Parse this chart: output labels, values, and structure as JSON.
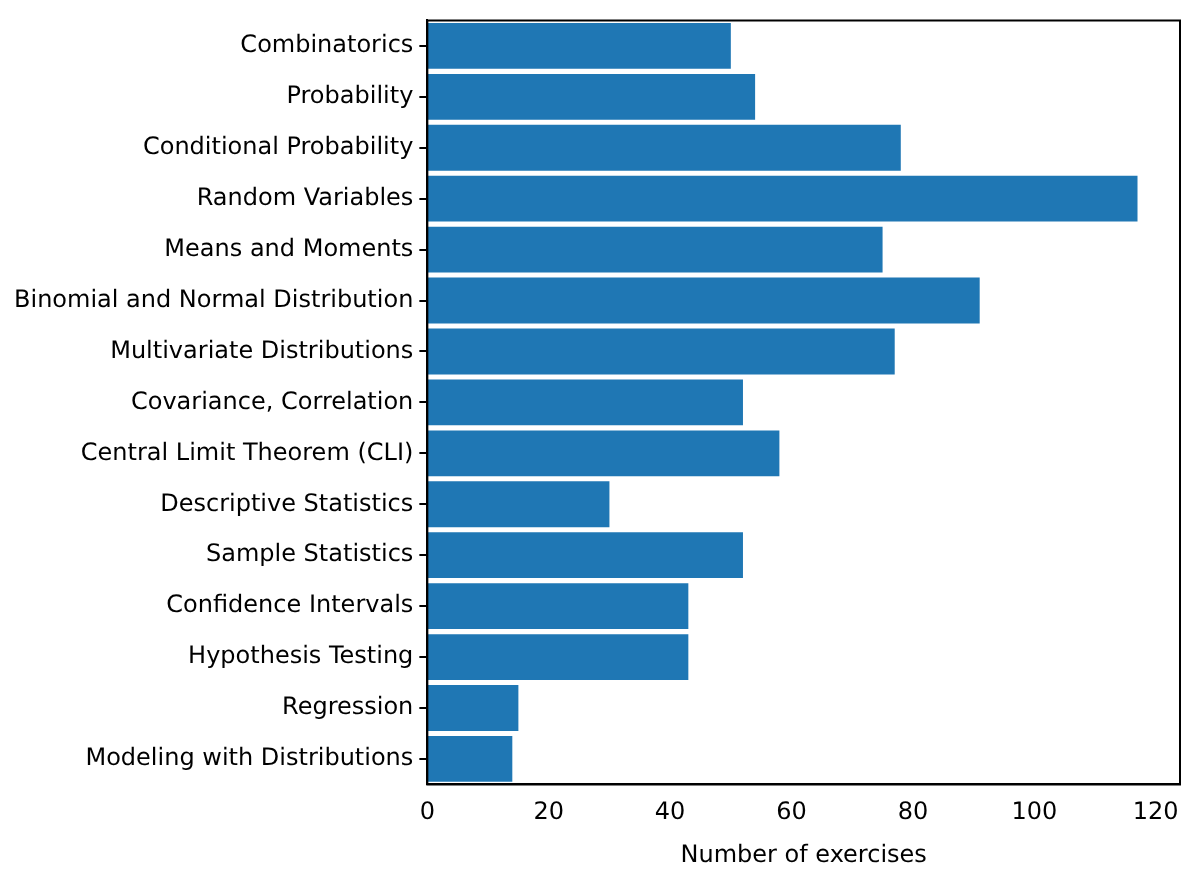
{
  "chart_data": {
    "type": "bar",
    "orientation": "horizontal",
    "xlabel": "Number of exercises",
    "categories": [
      "Combinatorics",
      "Probability",
      "Conditional Probability",
      "Random Variables",
      "Means and Moments",
      "Binomial and Normal Distribution",
      "Multivariate Distributions",
      "Covariance, Correlation",
      "Central Limit Theorem (CLI)",
      "Descriptive Statistics",
      "Sample Statistics",
      "Confidence Intervals",
      "Hypothesis Testing",
      "Regression",
      "Modeling with Distributions"
    ],
    "values": [
      50,
      54,
      78,
      117,
      75,
      91,
      77,
      52,
      58,
      30,
      52,
      43,
      43,
      15,
      14
    ],
    "color": "#1f77b4",
    "xlim": [
      0,
      124
    ],
    "xticks": [
      0,
      20,
      40,
      60,
      80,
      100,
      120
    ],
    "grid": false,
    "legend": false
  }
}
